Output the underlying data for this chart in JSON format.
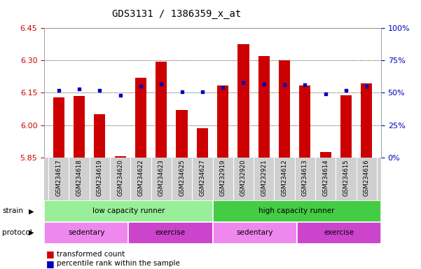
{
  "title": "GDS3131 / 1386359_x_at",
  "samples": [
    "GSM234617",
    "GSM234618",
    "GSM234619",
    "GSM234620",
    "GSM234622",
    "GSM234623",
    "GSM234625",
    "GSM234627",
    "GSM232919",
    "GSM232920",
    "GSM232921",
    "GSM234612",
    "GSM234613",
    "GSM234614",
    "GSM234615",
    "GSM234616"
  ],
  "transformed_count": [
    6.13,
    6.135,
    6.05,
    5.855,
    6.22,
    6.295,
    6.07,
    5.985,
    6.185,
    6.375,
    6.32,
    6.3,
    6.185,
    5.875,
    6.14,
    6.195
  ],
  "percentile": [
    52,
    53,
    52,
    48,
    55,
    57,
    51,
    51,
    54,
    58,
    57,
    56,
    56,
    49,
    52,
    55
  ],
  "ylim_left": [
    5.85,
    6.45
  ],
  "ylim_right": [
    0,
    100
  ],
  "yticks_left": [
    5.85,
    6.0,
    6.15,
    6.3,
    6.45
  ],
  "yticks_right": [
    0,
    25,
    50,
    75,
    100
  ],
  "ytick_labels_right": [
    "0%",
    "25%",
    "50%",
    "75%",
    "100%"
  ],
  "bar_color": "#CC0000",
  "dot_color": "#0000BB",
  "background_color": "#FFFFFF",
  "plot_bg_color": "#FFFFFF",
  "strain_groups": [
    {
      "label": "low capacity runner",
      "start": 0,
      "end": 8,
      "color": "#99EE99"
    },
    {
      "label": "high capacity runner",
      "start": 8,
      "end": 16,
      "color": "#44CC44"
    }
  ],
  "protocol_groups": [
    {
      "label": "sedentary",
      "start": 0,
      "end": 4,
      "color": "#EE88EE"
    },
    {
      "label": "exercise",
      "start": 4,
      "end": 8,
      "color": "#CC44CC"
    },
    {
      "label": "sedentary",
      "start": 8,
      "end": 12,
      "color": "#EE88EE"
    },
    {
      "label": "exercise",
      "start": 12,
      "end": 16,
      "color": "#CC44CC"
    }
  ],
  "legend_items": [
    {
      "label": "transformed count",
      "color": "#CC0000"
    },
    {
      "label": "percentile rank within the sample",
      "color": "#0000BB"
    }
  ],
  "bar_width": 0.55,
  "xlabel_color": "#CC0000",
  "ylabel_right_color": "#0000BB",
  "grid_color": "#000000",
  "title_fontsize": 10,
  "tick_fontsize": 8,
  "xtick_name_gray": "#CCCCCC"
}
